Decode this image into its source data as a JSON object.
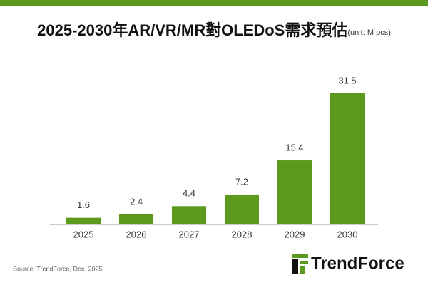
{
  "chart_data": {
    "type": "bar",
    "title": "2025-2030年AR/VR/MR對OLEDoS需求預估",
    "unit_label": "(unit: M pcs)",
    "categories": [
      "2025",
      "2026",
      "2027",
      "2028",
      "2029",
      "2030"
    ],
    "values": [
      1.6,
      2.4,
      4.4,
      7.2,
      15.4,
      31.5
    ],
    "color": "#5c9a1e",
    "source": "Source: TrendForce, Dec. 2025",
    "brand": "TrendForce"
  }
}
